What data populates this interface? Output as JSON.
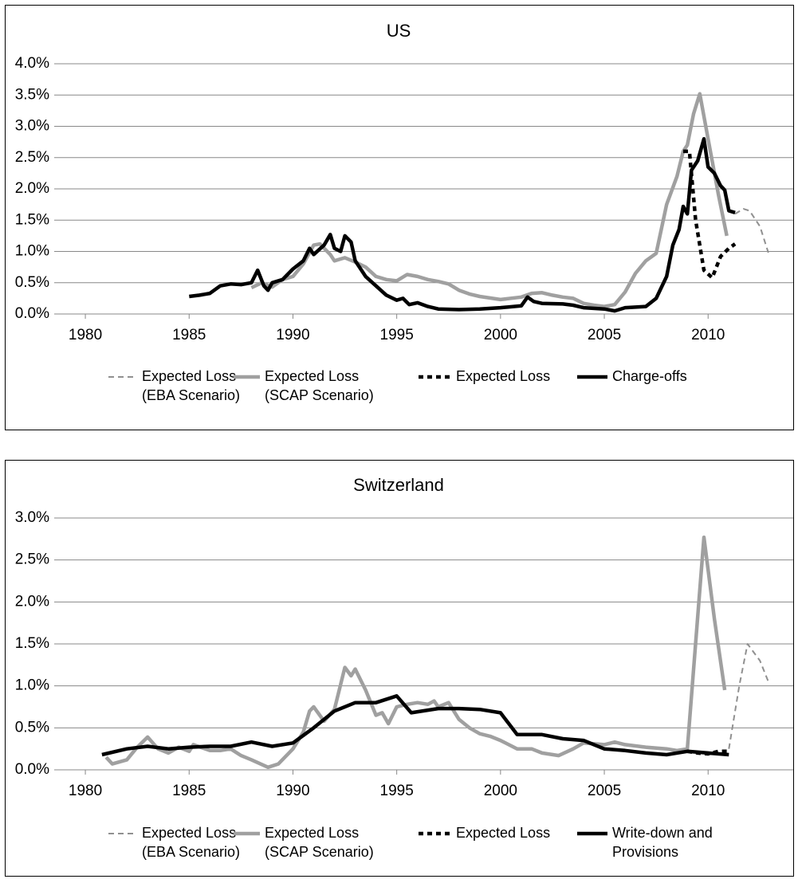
{
  "chart_data": [
    {
      "type": "line",
      "title": "US",
      "xlim": [
        1978.5,
        2014.1
      ],
      "xticks": [
        1980,
        1985,
        1990,
        1995,
        2000,
        2005,
        2010
      ],
      "ylim": [
        0,
        4
      ],
      "yticks": [
        {
          "value": 0,
          "label": "0.0%"
        },
        {
          "value": 0.5,
          "label": "0.5%"
        },
        {
          "value": 1,
          "label": "1.0%"
        },
        {
          "value": 1.5,
          "label": "1.5%"
        },
        {
          "value": 2,
          "label": "2.0%"
        },
        {
          "value": 2.5,
          "label": "2.5%"
        },
        {
          "value": 3,
          "label": "3.0%"
        },
        {
          "value": 3.5,
          "label": "3.5%"
        },
        {
          "value": 4,
          "label": "4.0%"
        }
      ],
      "grid": true,
      "series": [
        {
          "name": "Expected Loss\n(EBA Scenario)",
          "color": "#909090",
          "style": "dashed",
          "x": [
            2011.3,
            2011.7,
            2012,
            2012.5,
            2012.9
          ],
          "values": [
            1.6,
            1.68,
            1.65,
            1.4,
            0.98
          ]
        },
        {
          "name": "Expected Loss\n(SCAP Scenario)",
          "color": "#a0a0a0",
          "style": "solid",
          "x": [
            1988,
            1988.5,
            1989,
            1989.5,
            1990,
            1990.5,
            1991,
            1991.3,
            1991.8,
            1992,
            1992.5,
            1993,
            1993.5,
            1994,
            1994.5,
            1995,
            1995.5,
            1996,
            1996.5,
            1997,
            1997.5,
            1998,
            1998.5,
            1999,
            2000,
            2001,
            2001.5,
            2002,
            2002.5,
            2003,
            2003.5,
            2004,
            2004.5,
            2005,
            2005.5,
            2006,
            2006.5,
            2007,
            2007.5,
            2008,
            2008.5,
            2008.8,
            2009,
            2009.3,
            2009.6,
            2010,
            2010.5,
            2010.9
          ],
          "values": [
            0.42,
            0.5,
            0.43,
            0.55,
            0.6,
            0.8,
            1.1,
            1.12,
            0.95,
            0.85,
            0.9,
            0.83,
            0.75,
            0.6,
            0.55,
            0.53,
            0.63,
            0.6,
            0.55,
            0.52,
            0.48,
            0.38,
            0.32,
            0.28,
            0.23,
            0.27,
            0.33,
            0.34,
            0.3,
            0.27,
            0.25,
            0.17,
            0.14,
            0.12,
            0.15,
            0.35,
            0.65,
            0.85,
            0.97,
            1.75,
            2.2,
            2.6,
            2.7,
            3.2,
            3.52,
            2.8,
            1.9,
            1.25
          ]
        },
        {
          "name": "Expected Loss",
          "color": "#000000",
          "style": "dashed",
          "x": [
            2008.8,
            2009.1,
            2009.4,
            2009.8,
            2010.2,
            2010.6,
            2011,
            2011.3
          ],
          "values": [
            2.6,
            2.6,
            1.5,
            0.7,
            0.58,
            0.92,
            1.05,
            1.12
          ]
        },
        {
          "name": "Charge-offs",
          "color": "#000000",
          "style": "solid",
          "x": [
            1985,
            1985.5,
            1986,
            1986.5,
            1987,
            1987.5,
            1988,
            1988.3,
            1988.6,
            1988.8,
            1989,
            1989.5,
            1990,
            1990.5,
            1990.8,
            1991,
            1991.5,
            1991.8,
            1992,
            1992.3,
            1992.5,
            1992.8,
            1993,
            1993.5,
            1994,
            1994.5,
            1995,
            1995.3,
            1995.6,
            1996,
            1996.5,
            1997,
            1998,
            1999,
            2000,
            2001,
            2001.3,
            2001.6,
            2002,
            2003,
            2003.5,
            2004,
            2005,
            2005.5,
            2006,
            2007,
            2007.5,
            2008,
            2008.3,
            2008.6,
            2008.8,
            2009,
            2009.2,
            2009.5,
            2009.8,
            2010,
            2010.3,
            2010.6,
            2010.8,
            2011,
            2011.3
          ],
          "values": [
            0.28,
            0.3,
            0.33,
            0.45,
            0.48,
            0.47,
            0.5,
            0.7,
            0.45,
            0.38,
            0.5,
            0.55,
            0.72,
            0.85,
            1.05,
            0.95,
            1.1,
            1.27,
            1.05,
            1.0,
            1.25,
            1.15,
            0.85,
            0.6,
            0.45,
            0.3,
            0.22,
            0.25,
            0.15,
            0.18,
            0.12,
            0.08,
            0.07,
            0.08,
            0.1,
            0.13,
            0.27,
            0.2,
            0.17,
            0.16,
            0.14,
            0.1,
            0.08,
            0.05,
            0.1,
            0.12,
            0.25,
            0.6,
            1.1,
            1.35,
            1.72,
            1.6,
            2.3,
            2.45,
            2.8,
            2.35,
            2.25,
            2.05,
            1.98,
            1.65,
            1.62
          ]
        }
      ]
    },
    {
      "type": "line",
      "title": "Switzerland",
      "xlim": [
        1978.5,
        2014.1
      ],
      "xticks": [
        1980,
        1985,
        1990,
        1995,
        2000,
        2005,
        2010
      ],
      "ylim": [
        0,
        3
      ],
      "yticks": [
        {
          "value": 0,
          "label": "0.0%"
        },
        {
          "value": 0.5,
          "label": "0.5%"
        },
        {
          "value": 1,
          "label": "1.0%"
        },
        {
          "value": 1.5,
          "label": "1.5%"
        },
        {
          "value": 2,
          "label": "2.0%"
        },
        {
          "value": 2.5,
          "label": "2.5%"
        },
        {
          "value": 3,
          "label": "3.0%"
        }
      ],
      "grid": true,
      "series": [
        {
          "name": "Expected Loss\n(EBA Scenario)",
          "color": "#909090",
          "style": "dashed",
          "x": [
            2011,
            2011.5,
            2011.9,
            2012.5,
            2012.9
          ],
          "values": [
            0.25,
            1.0,
            1.5,
            1.3,
            1.05
          ]
        },
        {
          "name": "Expected Loss\n(SCAP Scenario)",
          "color": "#a0a0a0",
          "style": "solid",
          "x": [
            1981,
            1981.3,
            1982,
            1982.5,
            1983,
            1983.5,
            1984,
            1984.5,
            1985,
            1985.2,
            1986,
            1986.5,
            1987,
            1987.5,
            1988,
            1988.8,
            1989.3,
            1990,
            1990.5,
            1990.8,
            1991,
            1991.5,
            1992,
            1992.5,
            1992.8,
            1993,
            1993.5,
            1994,
            1994.3,
            1994.6,
            1995,
            1995.5,
            1996,
            1996.5,
            1996.8,
            1997,
            1997.5,
            1998,
            1998.5,
            1999,
            1999.5,
            2000,
            2000.8,
            2001.5,
            2002,
            2002.8,
            2003.5,
            2004,
            2005,
            2005.5,
            2006,
            2007,
            2008,
            2008.5,
            2009,
            2009.8,
            2010.3,
            2010.8
          ],
          "values": [
            0.15,
            0.07,
            0.12,
            0.27,
            0.39,
            0.25,
            0.2,
            0.27,
            0.22,
            0.3,
            0.23,
            0.23,
            0.25,
            0.17,
            0.12,
            0.03,
            0.07,
            0.25,
            0.45,
            0.7,
            0.75,
            0.58,
            0.72,
            1.22,
            1.12,
            1.2,
            0.95,
            0.65,
            0.68,
            0.55,
            0.75,
            0.78,
            0.8,
            0.78,
            0.82,
            0.75,
            0.8,
            0.6,
            0.5,
            0.43,
            0.4,
            0.35,
            0.25,
            0.25,
            0.2,
            0.17,
            0.25,
            0.32,
            0.3,
            0.33,
            0.3,
            0.27,
            0.25,
            0.23,
            0.25,
            2.77,
            1.8,
            0.95
          ]
        },
        {
          "name": "Expected Loss",
          "color": "#000000",
          "style": "dashed",
          "x": [
            2009,
            2009.5,
            2010,
            2010.5,
            2011
          ],
          "values": [
            0.22,
            0.2,
            0.19,
            0.22,
            0.22
          ]
        },
        {
          "name": "Write-down and\nProvisions",
          "color": "#000000",
          "style": "solid",
          "x": [
            1980.8,
            1982,
            1983,
            1984,
            1985,
            1986,
            1987,
            1988,
            1989,
            1990,
            1991,
            1992,
            1993,
            1994,
            1995,
            1995.7,
            1997,
            1998,
            1999,
            2000,
            2000.8,
            2002,
            2003,
            2004,
            2004.5,
            2005,
            2006,
            2007,
            2008,
            2009,
            2010,
            2011
          ],
          "values": [
            0.18,
            0.25,
            0.28,
            0.25,
            0.27,
            0.28,
            0.28,
            0.33,
            0.28,
            0.32,
            0.5,
            0.7,
            0.8,
            0.8,
            0.88,
            0.68,
            0.73,
            0.73,
            0.72,
            0.68,
            0.42,
            0.42,
            0.37,
            0.35,
            0.3,
            0.25,
            0.23,
            0.2,
            0.18,
            0.22,
            0.2,
            0.18
          ]
        }
      ]
    }
  ]
}
